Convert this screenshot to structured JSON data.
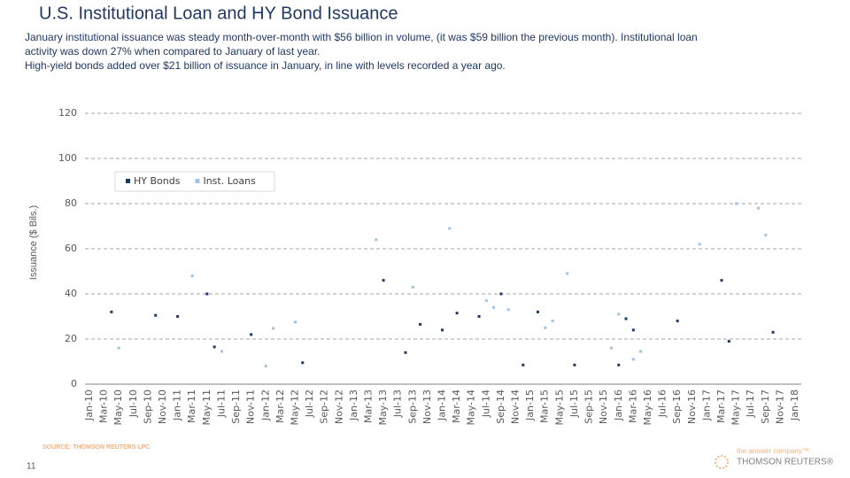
{
  "page": {
    "title": "U.S. Institutional Loan and HY Bond Issuance",
    "text": [
      "January institutional issuance was steady month-over-month with $56 billion in volume, (it was $59 billion the previous month). Institutional loan",
      "activity was down 27% when compared to January of last year.",
      "High-yield bonds added over $21 billion of issuance in January, in line with levels recorded a year ago."
    ],
    "source": "SOURCE: THOMSON REUTERS LPC",
    "page_number": "11",
    "tagline": "the answer company™",
    "brand": "THOMSON REUTERS®"
  },
  "chart_data": {
    "type": "scatter",
    "y_label": "Issuance ($ Bils.)",
    "grid": true,
    "legend": "top-left",
    "ylim": [
      0,
      120
    ],
    "yticks": [
      0,
      20,
      40,
      60,
      80,
      100,
      120
    ],
    "categories": [
      "Jan-10",
      null,
      "Mar-10",
      null,
      "May-10",
      null,
      "Jul-10",
      null,
      "Sep-10",
      null,
      "Nov-10",
      null,
      "Jan-11",
      null,
      "Mar-11",
      null,
      "May-11",
      null,
      "Jul-11",
      null,
      "Sep-11",
      null,
      "Nov-11",
      null,
      "Jan-12",
      null,
      "Mar-12",
      null,
      "May-12",
      null,
      "Jul-12",
      null,
      "Sep-12",
      null,
      "Nov-12",
      null,
      "Jan-13",
      null,
      "Mar-13",
      null,
      "May-13",
      null,
      "Jul-13",
      null,
      "Sep-13",
      null,
      "Nov-13",
      null,
      "Jan-14",
      null,
      "Mar-14",
      null,
      "May-14",
      null,
      "Jul-14",
      null,
      "Sep-14",
      null,
      "Nov-14",
      null,
      "Jan-15",
      null,
      "Mar-15",
      null,
      "May-15",
      null,
      "Jul-15",
      null,
      "Sep-15",
      null,
      "Nov-15",
      null,
      "Jan-16",
      null,
      "Mar-16",
      null,
      "May-16",
      null,
      "Jul-16",
      null,
      "Sep-16",
      null,
      "Nov-16",
      null,
      "Jan-17",
      null,
      "Mar-17",
      null,
      "May-17",
      null,
      "Jul-17",
      null,
      "Sep-17",
      null,
      "Nov-17",
      null,
      "Jan-18"
    ],
    "series": [
      {
        "name": "HY Bonds",
        "color": "#1f3864",
        "values": [
          null,
          null,
          null,
          32,
          null,
          null,
          null,
          null,
          null,
          30.5,
          null,
          null,
          30,
          null,
          null,
          null,
          40,
          16.5,
          null,
          null,
          null,
          null,
          22,
          null,
          null,
          null,
          null,
          null,
          null,
          9.5,
          null,
          null,
          null,
          null,
          null,
          null,
          null,
          null,
          null,
          null,
          46,
          null,
          null,
          14,
          null,
          26.5,
          null,
          null,
          24,
          null,
          31.5,
          null,
          null,
          30,
          null,
          null,
          40,
          null,
          null,
          8.5,
          null,
          32,
          null,
          null,
          null,
          null,
          8.5,
          null,
          null,
          null,
          null,
          null,
          8.5,
          29,
          24,
          null,
          null,
          null,
          null,
          null,
          28,
          null,
          null,
          null,
          null,
          null,
          46,
          19,
          null,
          null,
          null,
          null,
          null,
          23,
          null,
          null,
          null
        ]
      },
      {
        "name": "Inst. Loans",
        "color": "#9dc3e6",
        "values": [
          null,
          null,
          null,
          null,
          16,
          null,
          null,
          null,
          null,
          null,
          null,
          null,
          null,
          null,
          48,
          null,
          null,
          null,
          14.5,
          null,
          null,
          null,
          null,
          null,
          8,
          24.7,
          null,
          null,
          27.5,
          null,
          null,
          null,
          null,
          null,
          null,
          null,
          null,
          null,
          null,
          64,
          null,
          null,
          null,
          null,
          43,
          null,
          null,
          null,
          null,
          69,
          null,
          null,
          null,
          null,
          37,
          34,
          null,
          33,
          null,
          null,
          null,
          null,
          25,
          28,
          null,
          49,
          null,
          null,
          null,
          null,
          null,
          16,
          31,
          null,
          11,
          14.5,
          null,
          null,
          null,
          null,
          null,
          null,
          null,
          62,
          null,
          null,
          null,
          null,
          80,
          null,
          null,
          78,
          66,
          null,
          null,
          null,
          null
        ]
      }
    ]
  }
}
